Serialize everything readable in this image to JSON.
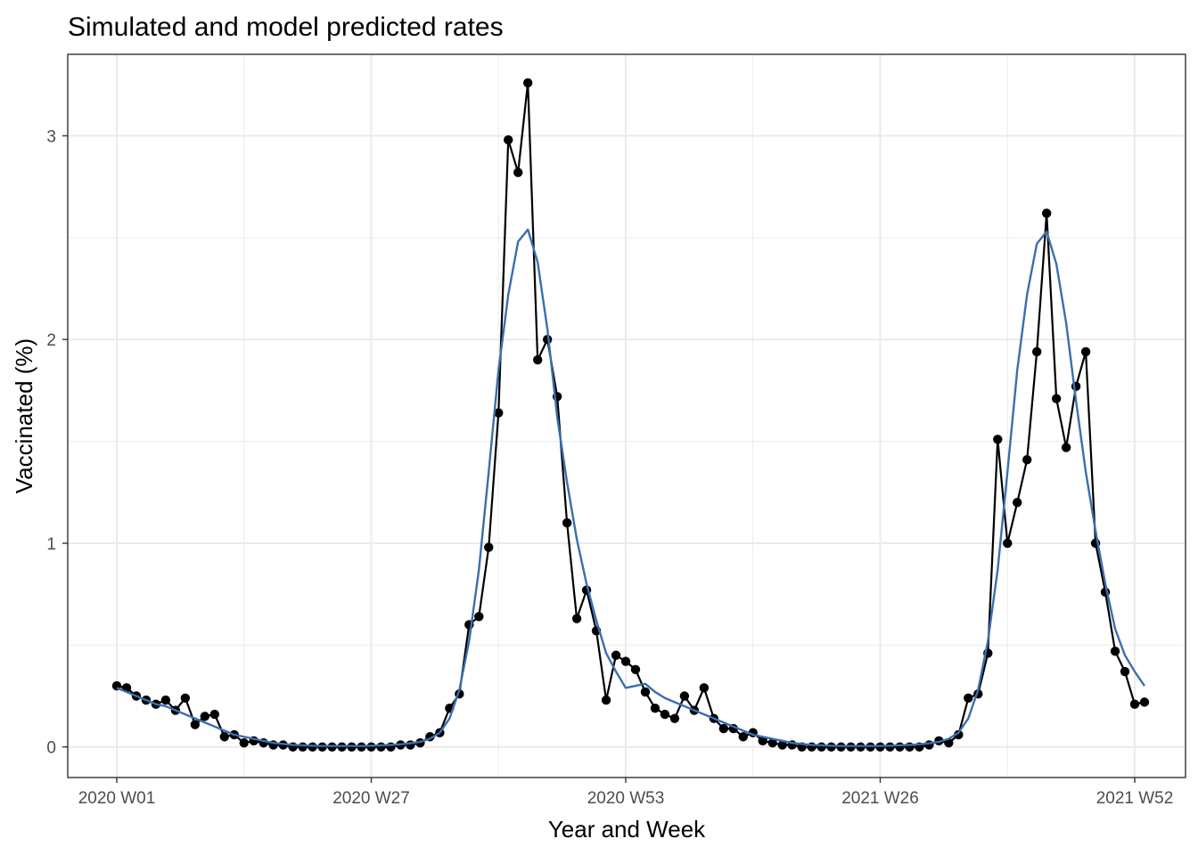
{
  "chart_data": {
    "type": "line",
    "title": "Simulated and model predicted rates",
    "xlabel": "Year and Week",
    "ylabel": "Vaccinated (%)",
    "x_tick_labels": [
      "2020 W01",
      "2020 W27",
      "2020 W53",
      "2021 W26",
      "2021 W52"
    ],
    "x_tick_index": [
      1,
      27,
      53,
      79,
      105
    ],
    "xlim": [
      1,
      105
    ],
    "y_ticks": [
      0,
      1,
      2,
      3
    ],
    "y_tick_labels": [
      "0",
      "1",
      "2",
      "3"
    ],
    "ylim": [
      -0.15,
      3.4
    ],
    "grid": true,
    "legend": "none",
    "series": [
      {
        "style": "points-and-line",
        "color": "#000000",
        "values": [
          0.3,
          0.29,
          0.25,
          0.23,
          0.21,
          0.23,
          0.18,
          0.24,
          0.11,
          0.15,
          0.16,
          0.05,
          0.06,
          0.02,
          0.03,
          0.02,
          0.01,
          0.01,
          0.0,
          0.0,
          0.0,
          0.0,
          0.0,
          0.0,
          0.0,
          0.0,
          0.0,
          0.0,
          0.0,
          0.01,
          0.01,
          0.02,
          0.05,
          0.07,
          0.19,
          0.26,
          0.6,
          0.64,
          0.98,
          1.64,
          2.98,
          2.82,
          3.26,
          1.9,
          2.0,
          1.72,
          1.1,
          0.63,
          0.77,
          0.57,
          0.23,
          0.45,
          0.42,
          0.38,
          0.27,
          0.19,
          0.16,
          0.14,
          0.25,
          0.18,
          0.29,
          0.14,
          0.09,
          0.09,
          0.05,
          0.07,
          0.03,
          0.02,
          0.01,
          0.01,
          0.0,
          0.0,
          0.0,
          0.0,
          0.0,
          0.0,
          0.0,
          0.0,
          0.0,
          0.0,
          0.0,
          0.0,
          0.0,
          0.01,
          0.03,
          0.02,
          0.06,
          0.24,
          0.26,
          0.46,
          1.51,
          1.0,
          1.2,
          1.41,
          1.94,
          2.62,
          1.71,
          1.47,
          1.77,
          1.94,
          1.0,
          0.76,
          0.47,
          0.37,
          0.21,
          0.22
        ]
      },
      {
        "style": "line",
        "color": "#3a6fad",
        "values": [
          0.29,
          0.27,
          0.25,
          0.23,
          0.21,
          0.2,
          0.18,
          0.16,
          0.14,
          0.12,
          0.1,
          0.08,
          0.06,
          0.05,
          0.04,
          0.03,
          0.02,
          0.015,
          0.01,
          0.008,
          0.006,
          0.005,
          0.005,
          0.005,
          0.005,
          0.005,
          0.006,
          0.008,
          0.01,
          0.013,
          0.018,
          0.025,
          0.04,
          0.07,
          0.14,
          0.28,
          0.52,
          0.87,
          1.35,
          1.85,
          2.22,
          2.48,
          2.54,
          2.38,
          2.05,
          1.62,
          1.3,
          1.02,
          0.8,
          0.62,
          0.46,
          0.37,
          0.29,
          0.3,
          0.31,
          0.27,
          0.24,
          0.22,
          0.2,
          0.18,
          0.16,
          0.14,
          0.12,
          0.1,
          0.08,
          0.06,
          0.05,
          0.04,
          0.03,
          0.02,
          0.015,
          0.01,
          0.008,
          0.006,
          0.005,
          0.005,
          0.005,
          0.005,
          0.005,
          0.006,
          0.008,
          0.01,
          0.013,
          0.018,
          0.025,
          0.04,
          0.07,
          0.14,
          0.28,
          0.52,
          0.87,
          1.35,
          1.85,
          2.22,
          2.47,
          2.53,
          2.37,
          2.08,
          1.7,
          1.35,
          1.06,
          0.8,
          0.58,
          0.45,
          0.37,
          0.3
        ]
      }
    ]
  }
}
